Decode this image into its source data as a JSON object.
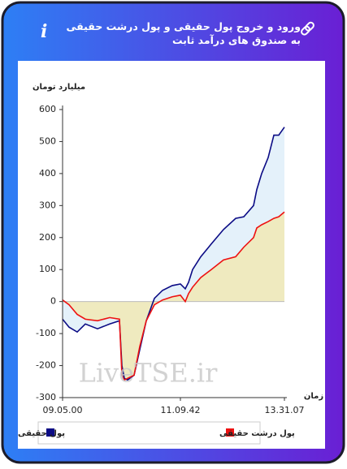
{
  "header": {
    "title": "ورود و خروج پول حقیقی و پول درشت حقیقی به صندوق های درآمد ثابت"
  },
  "chart_data": {
    "type": "line",
    "y_label": "میلیارد تومان",
    "x_label": "زمان",
    "watermark": "LiveTSE.ir",
    "x": [
      0,
      8,
      18,
      28,
      43,
      58,
      70,
      73,
      76,
      80,
      88,
      95,
      103,
      113,
      123,
      135,
      145,
      151,
      155,
      160,
      170,
      183,
      198,
      213,
      223,
      235,
      239,
      245,
      253,
      260,
      266,
      273
    ],
    "series": [
      {
        "name": "پول حقیقی",
        "color": "#0b0b85",
        "fill": "#e4f1fa",
        "values": [
          -55,
          -80,
          -95,
          -70,
          -85,
          -70,
          -60,
          -200,
          -240,
          -245,
          -230,
          -150,
          -60,
          10,
          35,
          50,
          55,
          40,
          60,
          100,
          140,
          180,
          225,
          260,
          265,
          300,
          350,
          400,
          450,
          520,
          520,
          545
        ]
      },
      {
        "name": "پول درشت حقیقی",
        "color": "#ee1111",
        "fill": "#efeabf",
        "values": [
          5,
          -10,
          -40,
          -55,
          -60,
          -50,
          -55,
          -230,
          -245,
          -240,
          -230,
          -140,
          -60,
          -10,
          5,
          15,
          20,
          0,
          25,
          45,
          75,
          100,
          130,
          140,
          170,
          200,
          230,
          240,
          250,
          260,
          265,
          280
        ]
      }
    ],
    "xlim": [
      0,
      273
    ],
    "xticks": [
      {
        "value": 0,
        "label": "09.05.00"
      },
      {
        "value": 145,
        "label": "11.09.42"
      },
      {
        "value": 273,
        "label": "13.31.07"
      }
    ],
    "ylim": [
      -300,
      600
    ],
    "yticks": [
      -300,
      -200,
      -100,
      0,
      100,
      200,
      300,
      400,
      500,
      600
    ]
  }
}
